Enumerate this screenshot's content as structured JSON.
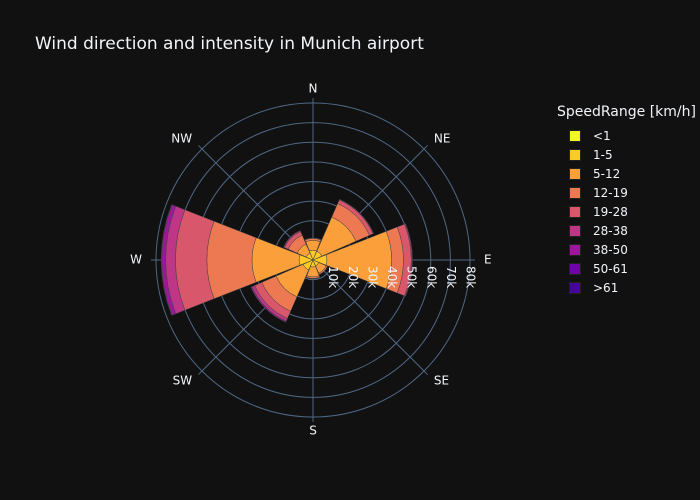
{
  "title": "Wind direction and intensity in Munich airport",
  "legend": {
    "title": "SpeedRange [km/h]",
    "items": [
      {
        "label": "<1",
        "color": "#f0f921"
      },
      {
        "label": "1-5",
        "color": "#fdca26"
      },
      {
        "label": "5-12",
        "color": "#fb9f3a"
      },
      {
        "label": "12-19",
        "color": "#ed7953"
      },
      {
        "label": "19-28",
        "color": "#d8576b"
      },
      {
        "label": "28-38",
        "color": "#bd3786"
      },
      {
        "label": "38-50",
        "color": "#9c179e"
      },
      {
        "label": "50-61",
        "color": "#7201a8"
      },
      {
        "label": ">61",
        "color": "#46039f"
      }
    ]
  },
  "chart_data": {
    "type": "barpolar",
    "title": "Wind direction and intensity in Munich airport",
    "angular_categories": [
      "N",
      "NE",
      "E",
      "SE",
      "S",
      "SW",
      "W",
      "NW"
    ],
    "radial_ticks": [
      "10k",
      "20k",
      "30k",
      "40k",
      "50k",
      "60k",
      "70k",
      "80k"
    ],
    "radial_range": [
      0,
      80000
    ],
    "stacked": true,
    "series": [
      {
        "name": "<1",
        "values": [
          500,
          400,
          600,
          300,
          400,
          500,
          600,
          300
        ]
      },
      {
        "name": "1-5",
        "values": [
          4500,
          4500,
          6500,
          3000,
          3200,
          5000,
          6500,
          3500
        ]
      },
      {
        "name": "5-12",
        "values": [
          5000,
          19000,
          33000,
          4000,
          5000,
          15000,
          24000,
          5000
        ]
      },
      {
        "name": "12-19",
        "values": [
          1000,
          7500,
          6000,
          700,
          800,
          8000,
          23000,
          5000
        ]
      },
      {
        "name": "19-28",
        "values": [
          200,
          2000,
          4000,
          100,
          100,
          4000,
          16000,
          2000
        ]
      },
      {
        "name": "28-38",
        "values": [
          0,
          300,
          500,
          0,
          0,
          1500,
          5000,
          500
        ]
      },
      {
        "name": "38-50",
        "values": [
          0,
          50,
          100,
          0,
          0,
          500,
          2000,
          100
        ]
      },
      {
        "name": "50-61",
        "values": [
          0,
          0,
          0,
          0,
          0,
          100,
          200,
          0
        ]
      },
      {
        "name": ">61",
        "values": [
          0,
          0,
          0,
          0,
          0,
          0,
          50,
          0
        ]
      }
    ]
  }
}
